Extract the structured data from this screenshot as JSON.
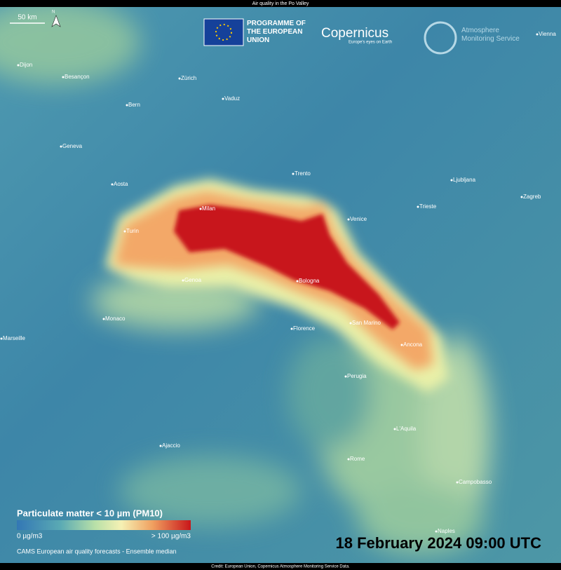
{
  "header": {
    "title": "Air quality in the Po Valley"
  },
  "scale_bar": "50 km",
  "north": "N",
  "logos": {
    "eu": "PROGRAMME OF THE EUROPEAN UNION",
    "copernicus": "Copernicus",
    "copernicus_tagline": "Europe's eyes on Earth",
    "cams": "Atmosphere Monitoring Service"
  },
  "cities": [
    "Vienna",
    "Dijon",
    "Besançon",
    "Zürich",
    "Vaduz",
    "Bern",
    "Geneva",
    "Trento",
    "Ljubljana",
    "Aosta",
    "Zagreb",
    "Milan",
    "Trieste",
    "Venice",
    "Turin",
    "Genoa",
    "Bologna",
    "Monaco",
    "San Marino",
    "Florence",
    "Marseille",
    "Ancona",
    "Perugia",
    "L'Aquila",
    "Ajaccio",
    "Rome",
    "Campobasso",
    "Naples"
  ],
  "legend": {
    "title": "Particulate matter < 10 µm (PM10)",
    "min_label": "0 µg/m3",
    "max_label": "> 100 µg/m3"
  },
  "date": "18 February 2024 09:00 UTC",
  "source": "CAMS European air quality forecasts - Ensemble median",
  "credit": "Credit: European Union, Copernicus Atmosphere Monitoring Service Data."
}
